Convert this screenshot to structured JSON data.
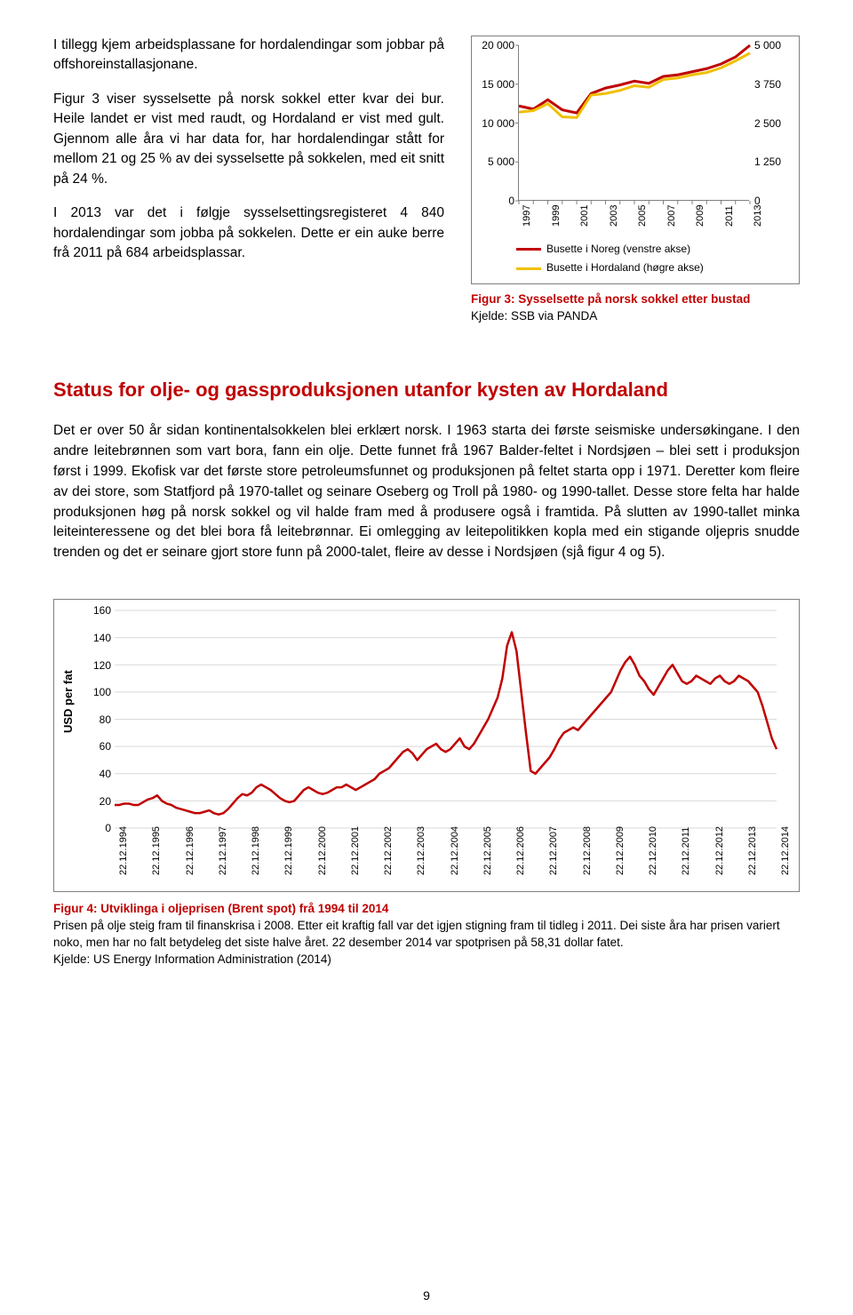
{
  "para1": "I tillegg kjem arbeidsplassane for hordalendingar som jobbar på offshoreinstallasjonane.",
  "para2": "Figur 3 viser sysselsette på norsk sokkel etter kvar dei bur. Heile landet er vist med raudt, og Hordaland er vist med gult. Gjennom alle åra vi har data for, har hordalendingar stått for mellom 21 og 25 % av dei sysselsette på sokkelen, med eit snitt på 24 %.",
  "para3": "I 2013 var det i følgje sysselsettingsregisteret 4 840 hordalendingar som jobba på sokkelen. Dette er ein auke berre frå 2011 på 684 arbeidsplassar.",
  "chart3": {
    "type": "line",
    "left_ticks": [
      "20 000",
      "15 000",
      "10 000",
      "5 000",
      "0"
    ],
    "right_ticks": [
      "5 000",
      "3 750",
      "2 500",
      "1 250",
      "0"
    ],
    "x_labels": [
      "1997",
      "1999",
      "2001",
      "2003",
      "2005",
      "2007",
      "2009",
      "2011",
      "2013"
    ],
    "series": [
      {
        "name": "Busette i Noreg (venstre akse)",
        "color": "#c00000",
        "values": [
          12200,
          11800,
          13000,
          11700,
          11300,
          13800,
          14500,
          14900,
          15400,
          15100,
          16000,
          16200,
          16600,
          17000,
          17600,
          18500,
          20000
        ]
      },
      {
        "name": "Busette i Hordaland (høgre akse)",
        "color": "#f0c000",
        "values": [
          11400,
          11600,
          12500,
          10800,
          10700,
          13600,
          13800,
          14200,
          14800,
          14600,
          15600,
          15800,
          16200,
          16500,
          17100,
          18000,
          19000
        ]
      }
    ],
    "leftmax": 20000,
    "box_bg": "#ffffff",
    "line_width": 3
  },
  "fig3_title": "Figur 3: Sysselsette på norsk sokkel etter bustad",
  "fig3_source": "Kjelde: SSB via PANDA",
  "section_head": "Status for olje- og gassproduksjonen utanfor kysten av Hordaland",
  "body": "Det er over 50 år sidan kontinentalsokkelen blei erklært norsk. I 1963 starta dei første seismiske undersøkingane. I den andre leitebrønnen som vart bora, fann ein olje. Dette funnet frå 1967 Balder-feltet i Nordsjøen – blei sett i produksjon først i 1999. Ekofisk var det første store petroleumsfunnet og produksjonen på feltet starta opp i 1971. Deretter kom fleire av dei store, som Statfjord på 1970-tallet og seinare Oseberg og Troll på 1980- og 1990-tallet. Desse store felta har halde produksjonen høg på norsk sokkel og vil halde fram med å produsere også i framtida. På slutten av 1990-tallet minka leiteinteressene og det blei bora få leitebrønnar. Ei omlegging av leitepolitikken kopla med ein stigande oljepris snudde trenden og det er seinare gjort store funn på 2000-talet, fleire av desse i Nordsjøen (sjå figur 4 og 5).",
  "chart4": {
    "type": "line",
    "ylabel": "USD per fat",
    "y_ticks": [
      "160",
      "140",
      "120",
      "100",
      "80",
      "60",
      "40",
      "20",
      "0"
    ],
    "ymax": 160,
    "x_labels": [
      "22.12.1994",
      "22.12.1995",
      "22.12.1996",
      "22.12.1997",
      "22.12.1998",
      "22.12.1999",
      "22.12.2000",
      "22.12.2001",
      "22.12.2002",
      "22.12.2003",
      "22.12.2004",
      "22.12.2005",
      "22.12.2006",
      "22.12.2007",
      "22.12.2008",
      "22.12.2009",
      "22.12.2010",
      "22.12.2011",
      "22.12.2012",
      "22.12.2013",
      "22.12.2014"
    ],
    "color": "#c00000",
    "line_width": 2.5,
    "values": [
      17,
      17,
      18,
      18,
      17,
      17,
      19,
      21,
      22,
      24,
      20,
      18,
      17,
      15,
      14,
      13,
      12,
      11,
      11,
      12,
      13,
      11,
      10,
      11,
      14,
      18,
      22,
      25,
      24,
      26,
      30,
      32,
      30,
      28,
      25,
      22,
      20,
      19,
      20,
      24,
      28,
      30,
      28,
      26,
      25,
      26,
      28,
      30,
      30,
      32,
      30,
      28,
      30,
      32,
      34,
      36,
      40,
      42,
      44,
      48,
      52,
      56,
      58,
      55,
      50,
      54,
      58,
      60,
      62,
      58,
      56,
      58,
      62,
      66,
      60,
      58,
      62,
      68,
      74,
      80,
      88,
      96,
      110,
      134,
      144,
      130,
      100,
      70,
      42,
      40,
      44,
      48,
      52,
      58,
      65,
      70,
      72,
      74,
      72,
      76,
      80,
      84,
      88,
      92,
      96,
      100,
      108,
      116,
      122,
      126,
      120,
      112,
      108,
      102,
      98,
      104,
      110,
      116,
      120,
      114,
      108,
      106,
      108,
      112,
      110,
      108,
      106,
      110,
      112,
      108,
      106,
      108,
      112,
      110,
      108,
      104,
      100,
      90,
      78,
      66,
      58
    ]
  },
  "fig4_title": "Figur 4: Utviklinga i oljeprisen (Brent spot) frå 1994 til 2014",
  "fig4_line1": "Prisen på olje steig fram til finanskrisa i 2008. Etter eit kraftig fall var det igjen stigning fram til tidleg i 2011. Dei siste åra har prisen variert noko, men har no falt betydeleg det siste halve året. 22 desember 2014 var spotprisen på 58,31 dollar fatet.",
  "fig4_source": "Kjelde: US Energy Information Administration (2014)",
  "page_num": "9"
}
